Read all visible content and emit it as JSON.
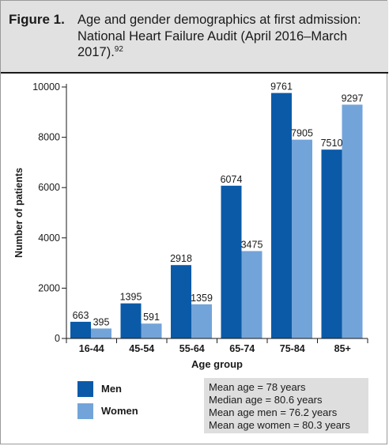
{
  "figure": {
    "label": "Figure 1.",
    "title": "Age and gender demographics at first admission: National Heart Failure Audit (April 2016–March 2017).",
    "reference": "92"
  },
  "chart_data": {
    "type": "bar",
    "categories": [
      "16-44",
      "45-54",
      "55-64",
      "65-74",
      "75-84",
      "85+"
    ],
    "series": [
      {
        "name": "Men",
        "values": [
          663,
          1395,
          2918,
          6074,
          9761,
          7510
        ],
        "color": "#0b5aa8"
      },
      {
        "name": "Women",
        "values": [
          395,
          591,
          1359,
          3475,
          7905,
          9297
        ],
        "color": "#73a4d9"
      }
    ],
    "xlabel": "Age group",
    "ylabel": "Number of patients",
    "ylim": [
      0,
      10000
    ],
    "yticks": [
      0,
      2000,
      4000,
      6000,
      8000,
      10000
    ],
    "grid": false,
    "legend": "bottom-left"
  },
  "summary_stats": [
    "Mean age = 78 years",
    "Median age = 80.6 years",
    "Mean age men = 76.2 years",
    "Mean age women = 80.3 years"
  ]
}
